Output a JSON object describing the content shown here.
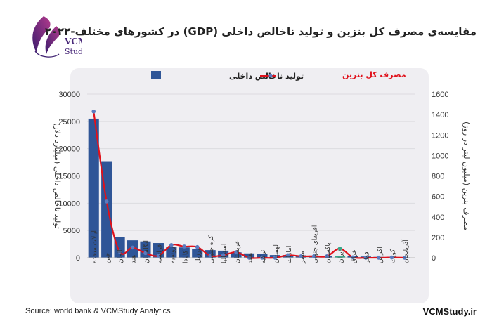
{
  "header": {
    "title": "مقایسه‌ی مصرف کل بنزین و تولید ناخالص داخلی (GDP) در کشورهای مختلف-۲۰۲۲",
    "logo_text": "VCM Study"
  },
  "footer": {
    "source": "Source: world bank & VCMStudy Analytics",
    "site": "VCMStudy.ir"
  },
  "colors": {
    "bar": "#2f5597",
    "line": "#e0111b",
    "marker": "#5b7bc0",
    "iran_bar": "#3aa68a"
  },
  "chart_data": {
    "type": "bar+line",
    "categories": [
      "ایالات متحده",
      "چین",
      "آلمان",
      "هند",
      "انگلستان",
      "فرانسه",
      "روسیه",
      "کانادا",
      "برزیل",
      "کره جنوبی",
      "استرالیا",
      "عربستان",
      "هلند",
      "ترکیه",
      "لهستان",
      "امارات",
      "مصر",
      "آفریقای جنوبی",
      "پاکستان",
      "ایران",
      "عراق",
      "قطر",
      "اکراین",
      "کویت",
      "آذربایجان"
    ],
    "series": [
      {
        "name": "تولید ناخالص داخلی",
        "type": "bar",
        "axis": "left",
        "values": [
          25500,
          17700,
          3800,
          3200,
          3000,
          2700,
          2000,
          1900,
          1600,
          1400,
          1300,
          1000,
          800,
          700,
          500,
          500,
          450,
          400,
          380,
          0,
          260,
          230,
          160,
          170,
          80
        ]
      },
      {
        "name": "مصرف کل بنزین",
        "type": "line",
        "axis": "right",
        "values": [
          1430,
          550,
          60,
          100,
          45,
          20,
          125,
          110,
          105,
          20,
          25,
          55,
          0,
          0,
          0,
          25,
          15,
          15,
          15,
          90,
          5,
          0,
          0,
          3,
          0
        ]
      }
    ],
    "y_left": {
      "label": "تولید ناخالص داخلی (میلیارد دلار)",
      "range": [
        0,
        30000
      ],
      "ticks": [
        0,
        5000,
        10000,
        15000,
        20000,
        25000,
        30000
      ]
    },
    "y_right": {
      "label": "مصرف بنزین (میلیون لیتر در روز)",
      "range": [
        0,
        1600
      ],
      "ticks": [
        0,
        200,
        400,
        600,
        800,
        1000,
        1200,
        1400,
        1600
      ]
    },
    "legend_position": "top",
    "grid": true
  }
}
